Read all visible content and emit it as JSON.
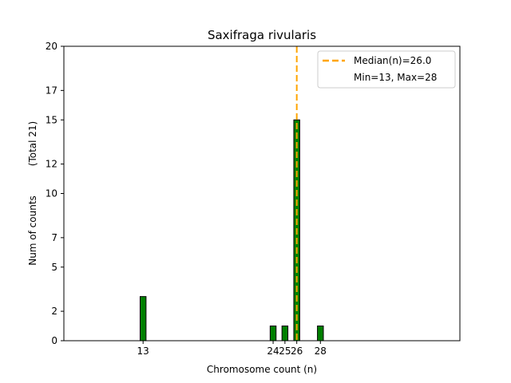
{
  "chart_data": {
    "type": "bar",
    "title": "Saxifraga rivularis",
    "xlabel": "Chromosome count (n)",
    "ylabel": "Num of counts",
    "ylabel_total": "(Total 21)",
    "x": [
      13,
      24,
      25,
      26,
      28
    ],
    "values": [
      3,
      1,
      1,
      15,
      1
    ],
    "xticks": [
      13,
      24,
      25,
      26,
      28
    ],
    "yticks": [
      0,
      2,
      5,
      7,
      10,
      12,
      15,
      17,
      20
    ],
    "xlim": [
      6.3,
      39.8
    ],
    "ylim": [
      0,
      20
    ],
    "bar_width": 0.5,
    "median": 26.0,
    "min": 13,
    "max": 28,
    "legend": {
      "placement": "top-right",
      "median_label": "Median(n)=26.0",
      "range_label": "Min=13, Max=28"
    },
    "colors": {
      "bar_fill": "#008000",
      "bar_edge": "#000000",
      "median_line": "#FFA500"
    },
    "grid": false
  }
}
